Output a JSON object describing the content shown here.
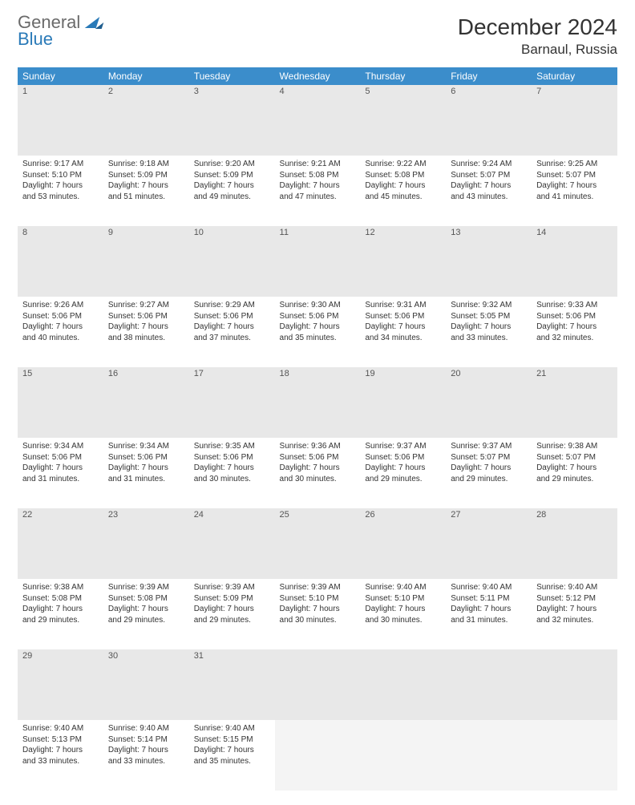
{
  "brand": {
    "line1": "General",
    "line2": "Blue"
  },
  "title": "December 2024",
  "location": "Barnaul, Russia",
  "colors": {
    "header_bg": "#3b8dcb",
    "header_text": "#ffffff",
    "daynum_bg": "#e8e8e8",
    "row_divider": "#3b8dcb",
    "text": "#333333",
    "brand_gray": "#6a6a6a",
    "brand_blue": "#2a7ab8"
  },
  "typography": {
    "title_fontsize": 28,
    "location_fontsize": 17,
    "header_fontsize": 12,
    "daynum_fontsize": 11,
    "body_fontsize": 10
  },
  "weekdays": [
    "Sunday",
    "Monday",
    "Tuesday",
    "Wednesday",
    "Thursday",
    "Friday",
    "Saturday"
  ],
  "weeks": [
    [
      {
        "n": "1",
        "sr": "Sunrise: 9:17 AM",
        "ss": "Sunset: 5:10 PM",
        "d1": "Daylight: 7 hours",
        "d2": "and 53 minutes."
      },
      {
        "n": "2",
        "sr": "Sunrise: 9:18 AM",
        "ss": "Sunset: 5:09 PM",
        "d1": "Daylight: 7 hours",
        "d2": "and 51 minutes."
      },
      {
        "n": "3",
        "sr": "Sunrise: 9:20 AM",
        "ss": "Sunset: 5:09 PM",
        "d1": "Daylight: 7 hours",
        "d2": "and 49 minutes."
      },
      {
        "n": "4",
        "sr": "Sunrise: 9:21 AM",
        "ss": "Sunset: 5:08 PM",
        "d1": "Daylight: 7 hours",
        "d2": "and 47 minutes."
      },
      {
        "n": "5",
        "sr": "Sunrise: 9:22 AM",
        "ss": "Sunset: 5:08 PM",
        "d1": "Daylight: 7 hours",
        "d2": "and 45 minutes."
      },
      {
        "n": "6",
        "sr": "Sunrise: 9:24 AM",
        "ss": "Sunset: 5:07 PM",
        "d1": "Daylight: 7 hours",
        "d2": "and 43 minutes."
      },
      {
        "n": "7",
        "sr": "Sunrise: 9:25 AM",
        "ss": "Sunset: 5:07 PM",
        "d1": "Daylight: 7 hours",
        "d2": "and 41 minutes."
      }
    ],
    [
      {
        "n": "8",
        "sr": "Sunrise: 9:26 AM",
        "ss": "Sunset: 5:06 PM",
        "d1": "Daylight: 7 hours",
        "d2": "and 40 minutes."
      },
      {
        "n": "9",
        "sr": "Sunrise: 9:27 AM",
        "ss": "Sunset: 5:06 PM",
        "d1": "Daylight: 7 hours",
        "d2": "and 38 minutes."
      },
      {
        "n": "10",
        "sr": "Sunrise: 9:29 AM",
        "ss": "Sunset: 5:06 PM",
        "d1": "Daylight: 7 hours",
        "d2": "and 37 minutes."
      },
      {
        "n": "11",
        "sr": "Sunrise: 9:30 AM",
        "ss": "Sunset: 5:06 PM",
        "d1": "Daylight: 7 hours",
        "d2": "and 35 minutes."
      },
      {
        "n": "12",
        "sr": "Sunrise: 9:31 AM",
        "ss": "Sunset: 5:06 PM",
        "d1": "Daylight: 7 hours",
        "d2": "and 34 minutes."
      },
      {
        "n": "13",
        "sr": "Sunrise: 9:32 AM",
        "ss": "Sunset: 5:05 PM",
        "d1": "Daylight: 7 hours",
        "d2": "and 33 minutes."
      },
      {
        "n": "14",
        "sr": "Sunrise: 9:33 AM",
        "ss": "Sunset: 5:06 PM",
        "d1": "Daylight: 7 hours",
        "d2": "and 32 minutes."
      }
    ],
    [
      {
        "n": "15",
        "sr": "Sunrise: 9:34 AM",
        "ss": "Sunset: 5:06 PM",
        "d1": "Daylight: 7 hours",
        "d2": "and 31 minutes."
      },
      {
        "n": "16",
        "sr": "Sunrise: 9:34 AM",
        "ss": "Sunset: 5:06 PM",
        "d1": "Daylight: 7 hours",
        "d2": "and 31 minutes."
      },
      {
        "n": "17",
        "sr": "Sunrise: 9:35 AM",
        "ss": "Sunset: 5:06 PM",
        "d1": "Daylight: 7 hours",
        "d2": "and 30 minutes."
      },
      {
        "n": "18",
        "sr": "Sunrise: 9:36 AM",
        "ss": "Sunset: 5:06 PM",
        "d1": "Daylight: 7 hours",
        "d2": "and 30 minutes."
      },
      {
        "n": "19",
        "sr": "Sunrise: 9:37 AM",
        "ss": "Sunset: 5:06 PM",
        "d1": "Daylight: 7 hours",
        "d2": "and 29 minutes."
      },
      {
        "n": "20",
        "sr": "Sunrise: 9:37 AM",
        "ss": "Sunset: 5:07 PM",
        "d1": "Daylight: 7 hours",
        "d2": "and 29 minutes."
      },
      {
        "n": "21",
        "sr": "Sunrise: 9:38 AM",
        "ss": "Sunset: 5:07 PM",
        "d1": "Daylight: 7 hours",
        "d2": "and 29 minutes."
      }
    ],
    [
      {
        "n": "22",
        "sr": "Sunrise: 9:38 AM",
        "ss": "Sunset: 5:08 PM",
        "d1": "Daylight: 7 hours",
        "d2": "and 29 minutes."
      },
      {
        "n": "23",
        "sr": "Sunrise: 9:39 AM",
        "ss": "Sunset: 5:08 PM",
        "d1": "Daylight: 7 hours",
        "d2": "and 29 minutes."
      },
      {
        "n": "24",
        "sr": "Sunrise: 9:39 AM",
        "ss": "Sunset: 5:09 PM",
        "d1": "Daylight: 7 hours",
        "d2": "and 29 minutes."
      },
      {
        "n": "25",
        "sr": "Sunrise: 9:39 AM",
        "ss": "Sunset: 5:10 PM",
        "d1": "Daylight: 7 hours",
        "d2": "and 30 minutes."
      },
      {
        "n": "26",
        "sr": "Sunrise: 9:40 AM",
        "ss": "Sunset: 5:10 PM",
        "d1": "Daylight: 7 hours",
        "d2": "and 30 minutes."
      },
      {
        "n": "27",
        "sr": "Sunrise: 9:40 AM",
        "ss": "Sunset: 5:11 PM",
        "d1": "Daylight: 7 hours",
        "d2": "and 31 minutes."
      },
      {
        "n": "28",
        "sr": "Sunrise: 9:40 AM",
        "ss": "Sunset: 5:12 PM",
        "d1": "Daylight: 7 hours",
        "d2": "and 32 minutes."
      }
    ],
    [
      {
        "n": "29",
        "sr": "Sunrise: 9:40 AM",
        "ss": "Sunset: 5:13 PM",
        "d1": "Daylight: 7 hours",
        "d2": "and 33 minutes."
      },
      {
        "n": "30",
        "sr": "Sunrise: 9:40 AM",
        "ss": "Sunset: 5:14 PM",
        "d1": "Daylight: 7 hours",
        "d2": "and 33 minutes."
      },
      {
        "n": "31",
        "sr": "Sunrise: 9:40 AM",
        "ss": "Sunset: 5:15 PM",
        "d1": "Daylight: 7 hours",
        "d2": "and 35 minutes."
      },
      null,
      null,
      null,
      null
    ]
  ]
}
